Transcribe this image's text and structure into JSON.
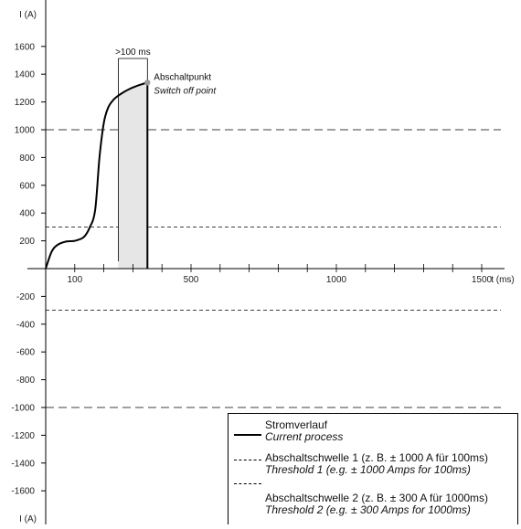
{
  "chart_data": {
    "type": "line",
    "ylabel_top": "I (A)",
    "ylabel_bottom": "I (A)",
    "xlabel": "t (ms)",
    "x_ticks": [
      100,
      500,
      1000,
      1500
    ],
    "y_ticks": [
      1600,
      1400,
      1200,
      1000,
      800,
      600,
      400,
      200,
      -200,
      -400,
      -600,
      -800,
      -1000,
      -1200,
      -1400,
      -1600
    ],
    "xlim": [
      0,
      1620
    ],
    "ylim": [
      -1740,
      1900
    ],
    "series": [
      {
        "name": "Stromverlauf",
        "name_en": "Current process",
        "style": "solid",
        "x": [
          0,
          20,
          40,
          70,
          100,
          130,
          150,
          170,
          185,
          200,
          215,
          235,
          260,
          290,
          320,
          350
        ],
        "y": [
          0,
          120,
          170,
          195,
          200,
          225,
          290,
          420,
          800,
          1050,
          1160,
          1220,
          1260,
          1295,
          1320,
          1340
        ]
      },
      {
        "name": "Abschaltschwelle 1 (z. B. ± 1000 A für 100ms)",
        "name_en": "Threshold 1 (e.g. ± 1000 Amps for 100ms)",
        "style": "long-dash",
        "levels": [
          1000,
          -1000
        ]
      },
      {
        "name": "Abschaltschwelle 2 (z. B. ± 300 A für 1000ms)",
        "name_en": "Threshold 2 (e.g. ± 300 Amps for 1000ms)",
        "style": "short-dash",
        "levels": [
          300,
          -300
        ]
      }
    ],
    "annotations": {
      "duration_label": ">100 ms",
      "duration_start_x": 250,
      "duration_end_x": 350,
      "switch_off_x": 350,
      "switch_off_y": 1340,
      "switch_off_de": "Abschaltpunkt",
      "switch_off_en": "Switch off point"
    },
    "legend_position": "bottom-right",
    "colors": {
      "line": "#000000",
      "shade": "#e6e6e6",
      "point": "#9a9a9a"
    }
  }
}
